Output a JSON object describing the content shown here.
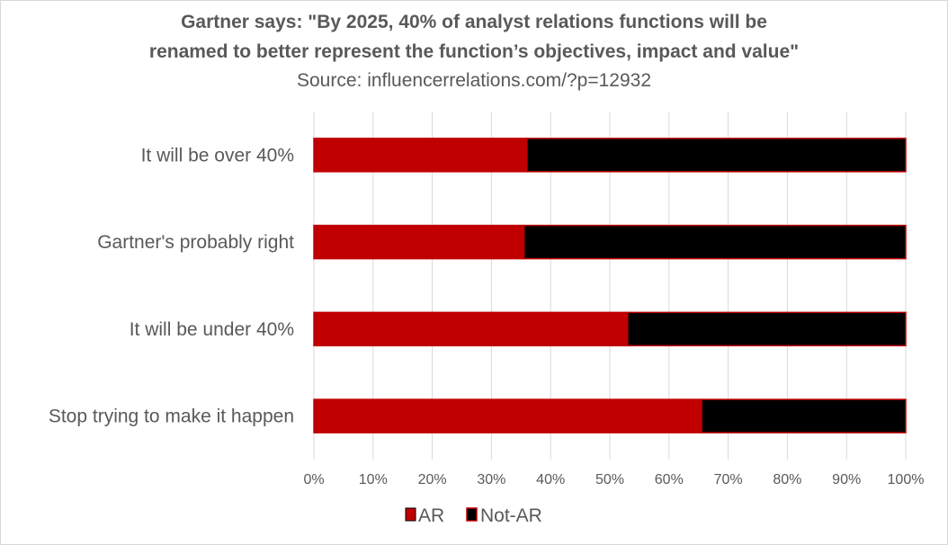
{
  "chart_data": {
    "type": "bar",
    "orientation": "horizontal",
    "stacked": "percent",
    "title": "Gartner says: \"By 2025, 40% of analyst relations functions will be renamed to better represent the function’s objectives, impact and value\"",
    "title_lines": [
      "Gartner says: \"By 2025, 40% of analyst relations functions will be",
      "renamed to better represent the function’s objectives, impact and value\""
    ],
    "subtitle": "Source: influencerrelations.com/?p=12932",
    "categories": [
      "It will be over 40%",
      "Gartner's probably right",
      "It will be under 40%",
      "Stop trying to make it happen"
    ],
    "series": [
      {
        "name": "AR",
        "values": [
          36,
          35.5,
          53,
          65.5
        ],
        "color": "#c00000"
      },
      {
        "name": "Not-AR",
        "values": [
          64,
          64.5,
          47,
          34.5
        ],
        "color": "#000000"
      }
    ],
    "xlim": [
      0,
      100
    ],
    "x_ticks": [
      "0%",
      "10%",
      "20%",
      "30%",
      "40%",
      "50%",
      "60%",
      "70%",
      "80%",
      "90%",
      "100%"
    ],
    "grid": "vertical",
    "legend_position": "bottom"
  }
}
